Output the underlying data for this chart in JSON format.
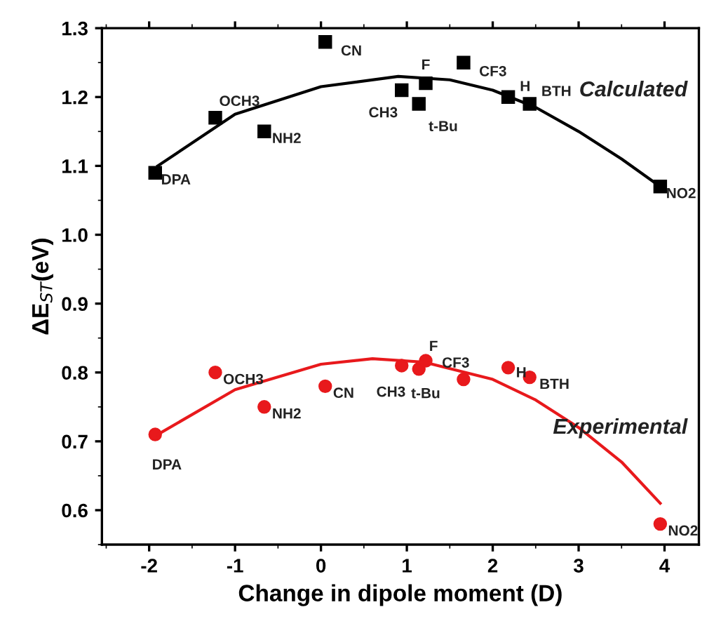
{
  "chart_data": {
    "type": "scatter",
    "xlabel": "Change in dipole moment (D)",
    "ylabel": "ΔE$_{ST}$(eV)",
    "xlim": [
      -2.55,
      4.4
    ],
    "xticks": [
      -2,
      -1,
      0,
      1,
      2,
      3,
      4
    ],
    "ylim": [
      0.55,
      1.3
    ],
    "yticks": [
      0.6,
      0.7,
      0.8,
      0.9,
      {
        "value": 1.0,
        "label": "1.0"
      },
      1.1,
      1.2,
      1.3
    ],
    "grid": false,
    "legend": false,
    "series": [
      {
        "name": "Calculated",
        "marker": "square",
        "color": "#000000",
        "x": [
          -1.93,
          -1.23,
          -0.66,
          0.05,
          0.94,
          1.14,
          1.22,
          1.66,
          2.18,
          2.43,
          3.95
        ],
        "values": [
          1.09,
          1.17,
          1.15,
          1.28,
          1.21,
          1.19,
          1.22,
          1.25,
          1.2,
          1.19,
          1.07
        ]
      },
      {
        "type": "line",
        "color": "#000000",
        "x": [
          -1.9,
          -1.0,
          0.0,
          0.9,
          1.5,
          2.0,
          2.5,
          3.0,
          3.5,
          3.95
        ],
        "values": [
          1.1,
          1.175,
          1.215,
          1.23,
          1.225,
          1.21,
          1.185,
          1.15,
          1.11,
          1.07
        ]
      },
      {
        "name": "Experimental",
        "marker": "circle",
        "color": "#e8191c",
        "x": [
          -1.93,
          -1.23,
          -0.66,
          0.05,
          0.94,
          1.14,
          1.22,
          1.66,
          2.18,
          2.43,
          3.95
        ],
        "values": [
          0.71,
          0.8,
          0.75,
          0.78,
          0.81,
          0.805,
          0.817,
          0.79,
          0.807,
          0.793,
          0.58
        ]
      },
      {
        "type": "line",
        "color": "#e8191c",
        "x": [
          -1.9,
          -1.0,
          0.0,
          0.6,
          1.2,
          2.0,
          2.5,
          3.0,
          3.5,
          3.95
        ],
        "values": [
          0.71,
          0.775,
          0.812,
          0.82,
          0.815,
          0.79,
          0.76,
          0.72,
          0.67,
          0.61
        ]
      }
    ],
    "annotations": [
      {
        "text": "DPA",
        "x": -1.93,
        "y": 1.09
      },
      {
        "text": "OCH3",
        "x": -1.23,
        "y": 1.17
      },
      {
        "text": "NH2",
        "x": -0.66,
        "y": 1.15
      },
      {
        "text": "CN",
        "x": 0.05,
        "y": 1.28
      },
      {
        "text": "CH3",
        "x": 0.94,
        "y": 1.21
      },
      {
        "text": "t-Bu",
        "x": 1.14,
        "y": 1.19
      },
      {
        "text": "F",
        "x": 1.22,
        "y": 1.22
      },
      {
        "text": "CF3",
        "x": 1.66,
        "y": 1.25
      },
      {
        "text": "H",
        "x": 2.18,
        "y": 1.2
      },
      {
        "text": "BTH",
        "x": 2.43,
        "y": 1.19
      },
      {
        "text": "NO2",
        "x": 3.95,
        "y": 1.07
      },
      {
        "text": "DPA",
        "x": -1.93,
        "y": 0.71
      },
      {
        "text": "OCH3",
        "x": -1.23,
        "y": 0.8
      },
      {
        "text": "NH2",
        "x": -0.66,
        "y": 0.75
      },
      {
        "text": "CN",
        "x": 0.05,
        "y": 0.78
      },
      {
        "text": "CH3",
        "x": 0.94,
        "y": 0.81
      },
      {
        "text": "t-Bu",
        "x": 1.14,
        "y": 0.805
      },
      {
        "text": "F",
        "x": 1.22,
        "y": 0.817
      },
      {
        "text": "CF3",
        "x": 1.66,
        "y": 0.79
      },
      {
        "text": "H",
        "x": 2.18,
        "y": 0.807
      },
      {
        "text": "BTH",
        "x": 2.43,
        "y": 0.793
      },
      {
        "text": "NO2",
        "x": 3.95,
        "y": 0.58
      }
    ]
  }
}
